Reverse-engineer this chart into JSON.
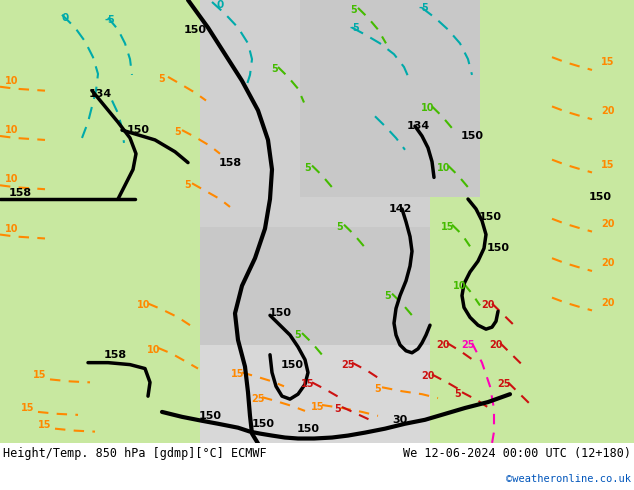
{
  "title_left": "Height/Temp. 850 hPa [gdmp][°C] ECMWF",
  "title_right": "We 12-06-2024 00:00 UTC (12+180)",
  "watermark": "©weatheronline.co.uk",
  "fig_width": 6.34,
  "fig_height": 4.9,
  "dpi": 100,
  "bg_white": "#ffffff",
  "bg_green": "#c8e8a0",
  "bg_gray": "#c8c8c8",
  "bg_sea": "#d0d0d0",
  "color_black": "#000000",
  "color_cyan": "#00aaaa",
  "color_green": "#44bb00",
  "color_orange": "#ff8800",
  "color_red": "#cc1111",
  "color_magenta": "#ff00bb",
  "color_blue": "#0055bb",
  "title_fontsize": 8.5,
  "watermark_fontsize": 7.5,
  "label_fontsize": 7.5,
  "contour_label_fontsize": 7.0
}
